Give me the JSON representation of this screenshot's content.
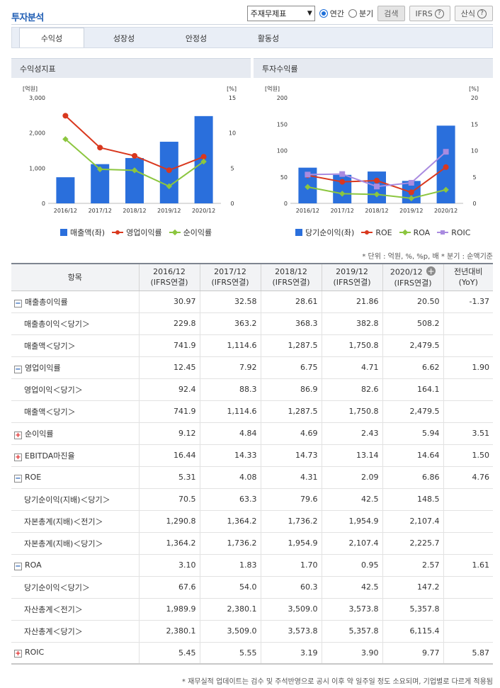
{
  "header": {
    "title": "투자분석"
  },
  "toolbar": {
    "select_value": "주재무제표",
    "radio_annual": "연간",
    "radio_quarter": "분기",
    "search_label": "검색",
    "ifrs_label": "IFRS",
    "formula_label": "산식"
  },
  "tabs": [
    {
      "label": "수익성"
    },
    {
      "label": "성장성"
    },
    {
      "label": "안정성"
    },
    {
      "label": "활동성"
    }
  ],
  "panels": {
    "left_title": "수익성지표",
    "right_title": "투자수익률",
    "left_legend": [
      "매출액(좌)",
      "영업이익률",
      "순이익률"
    ],
    "right_legend": [
      "당기순이익(좌)",
      "ROE",
      "ROA",
      "ROIC"
    ]
  },
  "colors": {
    "bar": "#2a6fdc",
    "red": "#d9381e",
    "green": "#8cc63f",
    "purple": "#a98be0"
  },
  "chart_data": [
    {
      "type": "bar",
      "title": "수익성지표",
      "categories": [
        "2016/12",
        "2017/12",
        "2018/12",
        "2019/12",
        "2020/12"
      ],
      "left_unit": "[억원]",
      "right_unit": "[%]",
      "left_ticks": [
        "3,000",
        "2,000",
        "1,000",
        "0"
      ],
      "right_ticks": [
        "15",
        "10",
        "5",
        "0"
      ],
      "ylim": [
        0,
        3000
      ],
      "y2lim": [
        0,
        15
      ],
      "series": [
        {
          "name": "매출액(좌)",
          "kind": "bar",
          "axis": "left",
          "values": [
            741.9,
            1114.6,
            1287.5,
            1750.8,
            2479.5
          ]
        },
        {
          "name": "영업이익률",
          "kind": "line",
          "axis": "right",
          "values": [
            12.45,
            7.92,
            6.75,
            4.71,
            6.62
          ]
        },
        {
          "name": "순이익률",
          "kind": "line",
          "axis": "right",
          "values": [
            9.12,
            4.84,
            4.69,
            2.43,
            5.94
          ]
        }
      ]
    },
    {
      "type": "bar",
      "title": "투자수익률",
      "categories": [
        "2016/12",
        "2017/12",
        "2018/12",
        "2019/12",
        "2020/12"
      ],
      "left_unit": "[억원]",
      "right_unit": "[%]",
      "left_ticks": [
        "200",
        "150",
        "100",
        "50",
        "0"
      ],
      "right_ticks": [
        "20",
        "15",
        "10",
        "5",
        "0"
      ],
      "ylim": [
        0,
        200
      ],
      "y2lim": [
        0,
        20
      ],
      "series": [
        {
          "name": "당기순이익(좌)",
          "kind": "bar",
          "axis": "left",
          "values": [
            67.6,
            54.0,
            60.3,
            42.5,
            147.2
          ]
        },
        {
          "name": "ROE",
          "kind": "line",
          "axis": "right",
          "values": [
            5.31,
            4.08,
            4.31,
            2.09,
            6.86
          ]
        },
        {
          "name": "ROA",
          "kind": "line",
          "axis": "right",
          "values": [
            3.1,
            1.83,
            1.7,
            0.95,
            2.57
          ]
        },
        {
          "name": "ROIC",
          "kind": "line",
          "axis": "right",
          "values": [
            5.45,
            5.55,
            3.19,
            3.9,
            9.77
          ]
        }
      ]
    }
  ],
  "note": "* 단위 : 억원, %, %p, 배    * 분기 : 순액기준",
  "table": {
    "headers": [
      "항목",
      "2016/12",
      "2017/12",
      "2018/12",
      "2019/12",
      "2020/12",
      "전년대비"
    ],
    "sub_headers": [
      "",
      "(IFRS연결)",
      "(IFRS연결)",
      "(IFRS연결)",
      "(IFRS연결)",
      "(IFRS연결)",
      "(YoY)"
    ],
    "rows": [
      {
        "label": "매출총이익률",
        "toggle": "−",
        "sub": false,
        "values": [
          "30.97",
          "32.58",
          "28.61",
          "21.86",
          "20.50"
        ],
        "yoy": "-1.37"
      },
      {
        "label": "매출총이익＜당기＞",
        "toggle": "",
        "sub": true,
        "values": [
          "229.8",
          "363.2",
          "368.3",
          "382.8",
          "508.2"
        ],
        "yoy": ""
      },
      {
        "label": "매출액＜당기＞",
        "toggle": "",
        "sub": true,
        "values": [
          "741.9",
          "1,114.6",
          "1,287.5",
          "1,750.8",
          "2,479.5"
        ],
        "yoy": ""
      },
      {
        "label": "영업이익률",
        "toggle": "−",
        "sub": false,
        "values": [
          "12.45",
          "7.92",
          "6.75",
          "4.71",
          "6.62"
        ],
        "yoy": "1.90"
      },
      {
        "label": "영업이익＜당기＞",
        "toggle": "",
        "sub": true,
        "values": [
          "92.4",
          "88.3",
          "86.9",
          "82.6",
          "164.1"
        ],
        "yoy": ""
      },
      {
        "label": "매출액＜당기＞",
        "toggle": "",
        "sub": true,
        "values": [
          "741.9",
          "1,114.6",
          "1,287.5",
          "1,750.8",
          "2,479.5"
        ],
        "yoy": ""
      },
      {
        "label": "순이익률",
        "toggle": "+",
        "sub": false,
        "values": [
          "9.12",
          "4.84",
          "4.69",
          "2.43",
          "5.94"
        ],
        "yoy": "3.51"
      },
      {
        "label": "EBITDA마진율",
        "toggle": "+",
        "sub": false,
        "values": [
          "16.44",
          "14.33",
          "14.73",
          "13.14",
          "14.64"
        ],
        "yoy": "1.50"
      },
      {
        "label": "ROE",
        "toggle": "−",
        "sub": false,
        "values": [
          "5.31",
          "4.08",
          "4.31",
          "2.09",
          "6.86"
        ],
        "yoy": "4.76"
      },
      {
        "label": "당기순이익(지배)＜당기＞",
        "toggle": "",
        "sub": true,
        "values": [
          "70.5",
          "63.3",
          "79.6",
          "42.5",
          "148.5"
        ],
        "yoy": ""
      },
      {
        "label": "자본총계(지배)＜전기＞",
        "toggle": "",
        "sub": true,
        "values": [
          "1,290.8",
          "1,364.2",
          "1,736.2",
          "1,954.9",
          "2,107.4"
        ],
        "yoy": ""
      },
      {
        "label": "자본총계(지배)＜당기＞",
        "toggle": "",
        "sub": true,
        "values": [
          "1,364.2",
          "1,736.2",
          "1,954.9",
          "2,107.4",
          "2,225.7"
        ],
        "yoy": ""
      },
      {
        "label": "ROA",
        "toggle": "−",
        "sub": false,
        "values": [
          "3.10",
          "1.83",
          "1.70",
          "0.95",
          "2.57"
        ],
        "yoy": "1.61"
      },
      {
        "label": "당기순이익＜당기＞",
        "toggle": "",
        "sub": true,
        "values": [
          "67.6",
          "54.0",
          "60.3",
          "42.5",
          "147.2"
        ],
        "yoy": ""
      },
      {
        "label": "자산총계＜전기＞",
        "toggle": "",
        "sub": true,
        "values": [
          "1,989.9",
          "2,380.1",
          "3,509.0",
          "3,573.8",
          "5,357.8"
        ],
        "yoy": ""
      },
      {
        "label": "자산총계＜당기＞",
        "toggle": "",
        "sub": true,
        "values": [
          "2,380.1",
          "3,509.0",
          "3,573.8",
          "5,357.8",
          "6,115.4"
        ],
        "yoy": ""
      },
      {
        "label": "ROIC",
        "toggle": "+",
        "sub": false,
        "values": [
          "5.45",
          "5.55",
          "3.19",
          "3.90",
          "9.77"
        ],
        "yoy": "5.87"
      }
    ]
  },
  "footnote": "* 재무실적 업데이트는 검수 및 주석반영으로 공시 이후 약 일주일 정도 소요되며, 기업별로 다르게 적용됨"
}
